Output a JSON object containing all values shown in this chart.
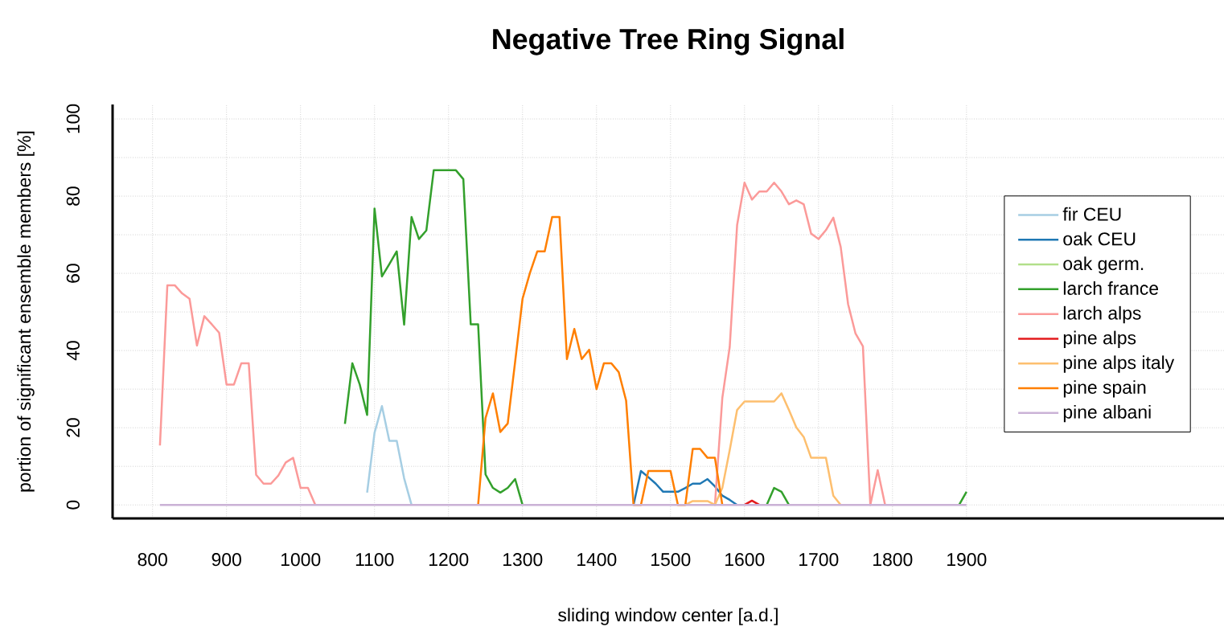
{
  "chart_data": {
    "type": "line",
    "title": "Negative Tree Ring Signal",
    "xlabel": "sliding window center [a.d.]",
    "ylabel": "portion of significant ensemble members [%]",
    "x": [
      810,
      820,
      830,
      840,
      850,
      860,
      870,
      880,
      890,
      900,
      910,
      920,
      930,
      940,
      950,
      960,
      970,
      980,
      990,
      1000,
      1010,
      1020,
      1030,
      1040,
      1050,
      1060,
      1070,
      1080,
      1090,
      1100,
      1110,
      1120,
      1130,
      1140,
      1150,
      1160,
      1170,
      1180,
      1190,
      1200,
      1210,
      1220,
      1230,
      1240,
      1250,
      1260,
      1270,
      1280,
      1290,
      1300,
      1310,
      1320,
      1330,
      1340,
      1350,
      1360,
      1370,
      1380,
      1390,
      1400,
      1410,
      1420,
      1430,
      1440,
      1450,
      1460,
      1470,
      1480,
      1490,
      1500,
      1510,
      1520,
      1530,
      1540,
      1550,
      1560,
      1570,
      1580,
      1590,
      1600,
      1610,
      1620,
      1630,
      1640,
      1650,
      1660,
      1670,
      1680,
      1690,
      1700,
      1710,
      1720,
      1730,
      1740,
      1750,
      1760,
      1770,
      1780,
      1790,
      1800,
      1810,
      1820,
      1830,
      1840,
      1850,
      1860,
      1870,
      1880,
      1890,
      1900
    ],
    "series": [
      {
        "name": "fir CEU",
        "color": "#a6cee3",
        "values": [
          null,
          null,
          null,
          null,
          null,
          null,
          null,
          null,
          null,
          null,
          null,
          null,
          null,
          null,
          null,
          null,
          null,
          null,
          null,
          null,
          null,
          null,
          null,
          null,
          null,
          null,
          null,
          null,
          3.2,
          18.7,
          25.6,
          16.6,
          16.6,
          6.9,
          0,
          null,
          null,
          null,
          null,
          null,
          null,
          null,
          null,
          null,
          null,
          null,
          null,
          null,
          null,
          null,
          null,
          null,
          null,
          null,
          null,
          null,
          null,
          null,
          null,
          null,
          null,
          null,
          null,
          null,
          null,
          null,
          null,
          null,
          null,
          null,
          null,
          null,
          null,
          null,
          null,
          null,
          null,
          null,
          null,
          null,
          null,
          null,
          null,
          null,
          null,
          null,
          null,
          null,
          null,
          null,
          null,
          null,
          null,
          null,
          null,
          null,
          null,
          null,
          null,
          null,
          null,
          null,
          null,
          null,
          null,
          null,
          null,
          null,
          null,
          null
        ]
      },
      {
        "name": "oak CEU",
        "color": "#1f78b4",
        "values": [
          null,
          null,
          null,
          null,
          null,
          null,
          null,
          null,
          null,
          null,
          null,
          null,
          null,
          null,
          null,
          null,
          null,
          null,
          null,
          null,
          null,
          null,
          null,
          null,
          null,
          null,
          null,
          null,
          null,
          null,
          null,
          null,
          null,
          null,
          null,
          null,
          null,
          null,
          null,
          null,
          null,
          null,
          null,
          null,
          null,
          null,
          null,
          null,
          null,
          null,
          null,
          null,
          null,
          null,
          null,
          null,
          null,
          null,
          null,
          null,
          null,
          null,
          null,
          null,
          0,
          8.8,
          7.2,
          5.5,
          3.4,
          3.4,
          3.4,
          4.4,
          5.5,
          5.5,
          6.7,
          4.8,
          2.4,
          1.3,
          0,
          null,
          null,
          null,
          null,
          null,
          null,
          null,
          null,
          null,
          null,
          null,
          null,
          null,
          null,
          null,
          null,
          null,
          null,
          null,
          null,
          null,
          null,
          null,
          null,
          null,
          null,
          null,
          null,
          null,
          null,
          null
        ]
      },
      {
        "name": "oak germ.",
        "color": "#b2df8a",
        "values": [
          null,
          null,
          null,
          null,
          null,
          null,
          null,
          null,
          null,
          null,
          null,
          null,
          null,
          null,
          null,
          null,
          null,
          null,
          null,
          null,
          null,
          null,
          null,
          null,
          null,
          null,
          null,
          null,
          null,
          null,
          null,
          null,
          null,
          null,
          null,
          null,
          null,
          null,
          null,
          null,
          null,
          null,
          null,
          null,
          null,
          null,
          null,
          null,
          null,
          null,
          null,
          null,
          null,
          null,
          null,
          null,
          null,
          null,
          null,
          null,
          null,
          null,
          null,
          null,
          null,
          null,
          null,
          null,
          null,
          null,
          null,
          null,
          null,
          null,
          null,
          null,
          null,
          null,
          null,
          null,
          null,
          null,
          null,
          null,
          null,
          null,
          null,
          null,
          null,
          null,
          null,
          null,
          null,
          null,
          null,
          null,
          null,
          null,
          null,
          null,
          null,
          null,
          null,
          null,
          null,
          null,
          null,
          null,
          null,
          null
        ]
      },
      {
        "name": "larch france",
        "color": "#33a02c",
        "values": [
          null,
          null,
          null,
          null,
          null,
          null,
          null,
          null,
          null,
          null,
          null,
          null,
          null,
          null,
          null,
          null,
          null,
          null,
          null,
          null,
          null,
          null,
          null,
          null,
          null,
          21.0,
          36.7,
          31.2,
          23.3,
          76.8,
          59.2,
          62.4,
          65.7,
          46.7,
          74.6,
          68.9,
          71.1,
          86.7,
          86.7,
          86.7,
          86.7,
          84.4,
          46.8,
          46.8,
          7.9,
          4.4,
          3.2,
          4.4,
          6.7,
          0,
          null,
          null,
          null,
          null,
          null,
          null,
          null,
          null,
          null,
          null,
          null,
          null,
          null,
          null,
          null,
          null,
          null,
          null,
          null,
          null,
          null,
          null,
          null,
          null,
          null,
          null,
          null,
          null,
          null,
          null,
          null,
          null,
          0,
          4.4,
          3.4,
          0,
          null,
          null,
          null,
          null,
          null,
          null,
          null,
          null,
          null,
          null,
          null,
          null,
          null,
          null,
          null,
          null,
          null,
          null,
          null,
          null,
          null,
          null,
          0,
          3.4
        ]
      },
      {
        "name": "larch alps",
        "color": "#fb9a99",
        "values": [
          15.4,
          56.9,
          56.9,
          54.8,
          53.4,
          41.3,
          48.9,
          46.8,
          44.6,
          31.2,
          31.2,
          36.7,
          36.7,
          7.8,
          5.5,
          5.5,
          7.6,
          11.0,
          12.2,
          4.4,
          4.4,
          0,
          null,
          null,
          null,
          null,
          null,
          null,
          null,
          null,
          null,
          null,
          null,
          null,
          null,
          null,
          null,
          null,
          null,
          null,
          null,
          null,
          null,
          null,
          null,
          null,
          null,
          null,
          null,
          null,
          null,
          null,
          null,
          null,
          null,
          null,
          null,
          null,
          null,
          null,
          null,
          null,
          null,
          null,
          null,
          null,
          null,
          null,
          null,
          null,
          null,
          null,
          null,
          null,
          null,
          0,
          27.7,
          40.9,
          72.5,
          83.5,
          79.1,
          81.2,
          81.2,
          83.5,
          81.2,
          77.9,
          78.9,
          77.9,
          70.3,
          68.9,
          71.2,
          74.4,
          66.8,
          52.0,
          44.4,
          41.1,
          0,
          9.0,
          0,
          null,
          null,
          null,
          null,
          null,
          null,
          null,
          null,
          null,
          null,
          null
        ]
      },
      {
        "name": "pine alps",
        "color": "#e31a1c",
        "values": [
          null,
          null,
          null,
          null,
          null,
          null,
          null,
          null,
          null,
          null,
          null,
          null,
          null,
          null,
          null,
          null,
          null,
          null,
          null,
          null,
          null,
          null,
          null,
          null,
          null,
          null,
          null,
          null,
          null,
          null,
          null,
          null,
          null,
          null,
          null,
          null,
          null,
          null,
          null,
          null,
          null,
          null,
          null,
          null,
          null,
          null,
          null,
          null,
          null,
          null,
          null,
          null,
          null,
          null,
          null,
          null,
          null,
          null,
          null,
          null,
          null,
          null,
          null,
          null,
          null,
          null,
          null,
          null,
          null,
          null,
          null,
          null,
          null,
          null,
          null,
          null,
          null,
          null,
          null,
          0,
          1.1,
          0,
          null,
          null,
          null,
          null,
          null,
          null,
          null,
          null,
          null,
          null,
          null,
          null,
          null,
          null,
          null,
          null,
          null,
          null,
          null,
          null,
          null,
          null,
          null,
          null,
          null,
          null,
          null,
          null
        ]
      },
      {
        "name": "pine alps italy",
        "color": "#fdbf6f",
        "values": [
          null,
          null,
          null,
          null,
          null,
          null,
          null,
          null,
          null,
          null,
          null,
          null,
          null,
          null,
          null,
          null,
          null,
          null,
          null,
          null,
          null,
          null,
          null,
          null,
          null,
          null,
          null,
          null,
          null,
          null,
          null,
          null,
          null,
          null,
          null,
          null,
          null,
          null,
          null,
          null,
          null,
          null,
          null,
          null,
          null,
          null,
          null,
          null,
          null,
          null,
          null,
          null,
          null,
          null,
          null,
          null,
          null,
          null,
          null,
          null,
          null,
          null,
          null,
          null,
          null,
          null,
          null,
          null,
          null,
          null,
          null,
          0,
          1.0,
          1.0,
          1.0,
          0,
          4.4,
          14.2,
          24.6,
          26.8,
          26.8,
          26.8,
          26.8,
          26.8,
          28.9,
          24.6,
          20.1,
          17.6,
          12.2,
          12.2,
          12.2,
          2.4,
          0,
          null,
          null,
          null,
          null,
          null,
          null,
          null,
          null,
          null,
          null,
          null,
          null,
          null,
          null,
          null,
          null,
          null
        ]
      },
      {
        "name": "pine spain",
        "color": "#ff7f00",
        "values": [
          null,
          null,
          null,
          null,
          null,
          null,
          null,
          null,
          null,
          null,
          null,
          null,
          null,
          null,
          null,
          null,
          null,
          null,
          null,
          null,
          null,
          null,
          null,
          null,
          null,
          null,
          null,
          null,
          null,
          null,
          null,
          null,
          null,
          null,
          null,
          null,
          null,
          null,
          null,
          null,
          null,
          null,
          null,
          0,
          22.5,
          28.9,
          18.9,
          21.1,
          37.1,
          53.4,
          60.1,
          65.7,
          65.7,
          74.6,
          74.6,
          37.8,
          45.6,
          37.8,
          40.2,
          30.0,
          36.7,
          36.7,
          34.4,
          27.0,
          0,
          0,
          8.8,
          8.8,
          8.8,
          8.8,
          0,
          0,
          14.5,
          14.5,
          12.2,
          12.2,
          0,
          null,
          null,
          null,
          null,
          null,
          null,
          null,
          null,
          null,
          null,
          null,
          null,
          null,
          null,
          null,
          null,
          null,
          null,
          null,
          null,
          null,
          null,
          null,
          null,
          null,
          null,
          null,
          null,
          null,
          null,
          null,
          null,
          null
        ]
      },
      {
        "name": "pine albani",
        "color": "#cab2d6",
        "values": [
          0,
          0,
          0,
          0,
          0,
          0,
          0,
          0,
          0,
          0,
          0,
          0,
          0,
          0,
          0,
          0,
          0,
          0,
          0,
          0,
          0,
          0,
          0,
          0,
          0,
          0,
          0,
          0,
          0,
          0,
          0,
          0,
          0,
          0,
          0,
          0,
          0,
          0,
          0,
          0,
          0,
          0,
          0,
          0,
          0,
          0,
          0,
          0,
          0,
          0,
          0,
          0,
          0,
          0,
          0,
          0,
          0,
          0,
          0,
          0,
          0,
          0,
          0,
          0,
          0,
          0,
          0,
          0,
          0,
          0,
          0,
          0,
          0,
          0,
          0,
          0,
          0,
          0,
          0,
          0,
          0,
          0,
          0,
          0,
          0,
          0,
          0,
          0,
          0,
          0,
          0,
          0,
          0,
          0,
          0,
          0,
          0,
          0,
          0,
          0,
          0,
          0,
          0,
          0,
          0,
          0,
          0,
          0,
          0,
          0
        ]
      }
    ],
    "xlim": [
      746,
      2248
    ],
    "ylim": [
      -3.5,
      103.75
    ],
    "xticks": [
      800,
      900,
      1000,
      1100,
      1200,
      1300,
      1400,
      1500,
      1600,
      1700,
      1800,
      1900
    ],
    "yticks": [
      0,
      {
        "value": 10,
        "label": null
      },
      20,
      {
        "value": 30,
        "label": null
      },
      40,
      {
        "value": 50,
        "label": null
      },
      60,
      {
        "value": 70,
        "label": null
      },
      80,
      {
        "value": 90,
        "label": null
      },
      100
    ],
    "grid": true,
    "legend": "right",
    "line_style": "solid"
  }
}
